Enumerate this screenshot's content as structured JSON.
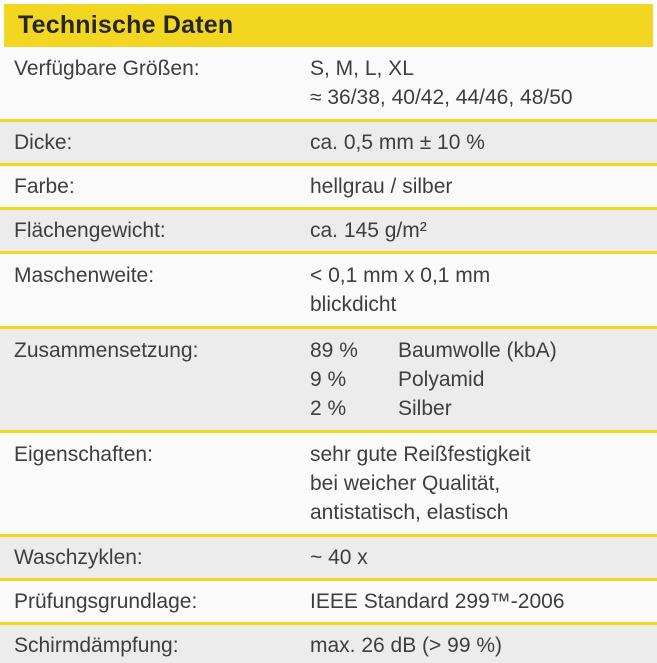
{
  "header": {
    "title": "Technische Daten"
  },
  "colors": {
    "accent_yellow": "#F2D622",
    "row_gray": "#ECECEC",
    "row_light": "#FAFAFA",
    "text": "#3E3E3E",
    "header_text": "#262626"
  },
  "table": {
    "rows": [
      {
        "label": "Verfügbare Größen:",
        "lines": [
          "S, M, L, XL",
          "≈ 36/38, 40/42, 44/46, 48/50"
        ]
      },
      {
        "label": "Dicke:",
        "lines": [
          "ca. 0,5 mm ± 10 %"
        ]
      },
      {
        "label": "Farbe:",
        "lines": [
          "hellgrau / silber"
        ]
      },
      {
        "label": "Flächengewicht:",
        "lines": [
          "ca. 145 g/m²"
        ]
      },
      {
        "label": "Maschenweite:",
        "lines": [
          "< 0,1 mm x 0,1 mm",
          "blickdicht"
        ]
      },
      {
        "label": "Zusammensetzung:",
        "composition": [
          {
            "pct": "89 %",
            "name": "Baumwolle (kbA)"
          },
          {
            "pct": "9 %",
            "name": "Polyamid"
          },
          {
            "pct": "2 %",
            "name": "Silber"
          }
        ]
      },
      {
        "label": "Eigenschaften:",
        "lines": [
          "sehr gute Reißfestigkeit",
          "bei weicher Qualität,",
          "antistatisch, elastisch"
        ]
      },
      {
        "label": "Waschzyklen:",
        "lines": [
          "~ 40 x"
        ]
      },
      {
        "label": "Prüfungsgrundlage:",
        "lines": [
          "IEEE Standard 299™-2006"
        ]
      },
      {
        "label": "Schirmdämpfung:",
        "lines": [
          "max. 26 dB (> 99 %)"
        ]
      }
    ]
  }
}
